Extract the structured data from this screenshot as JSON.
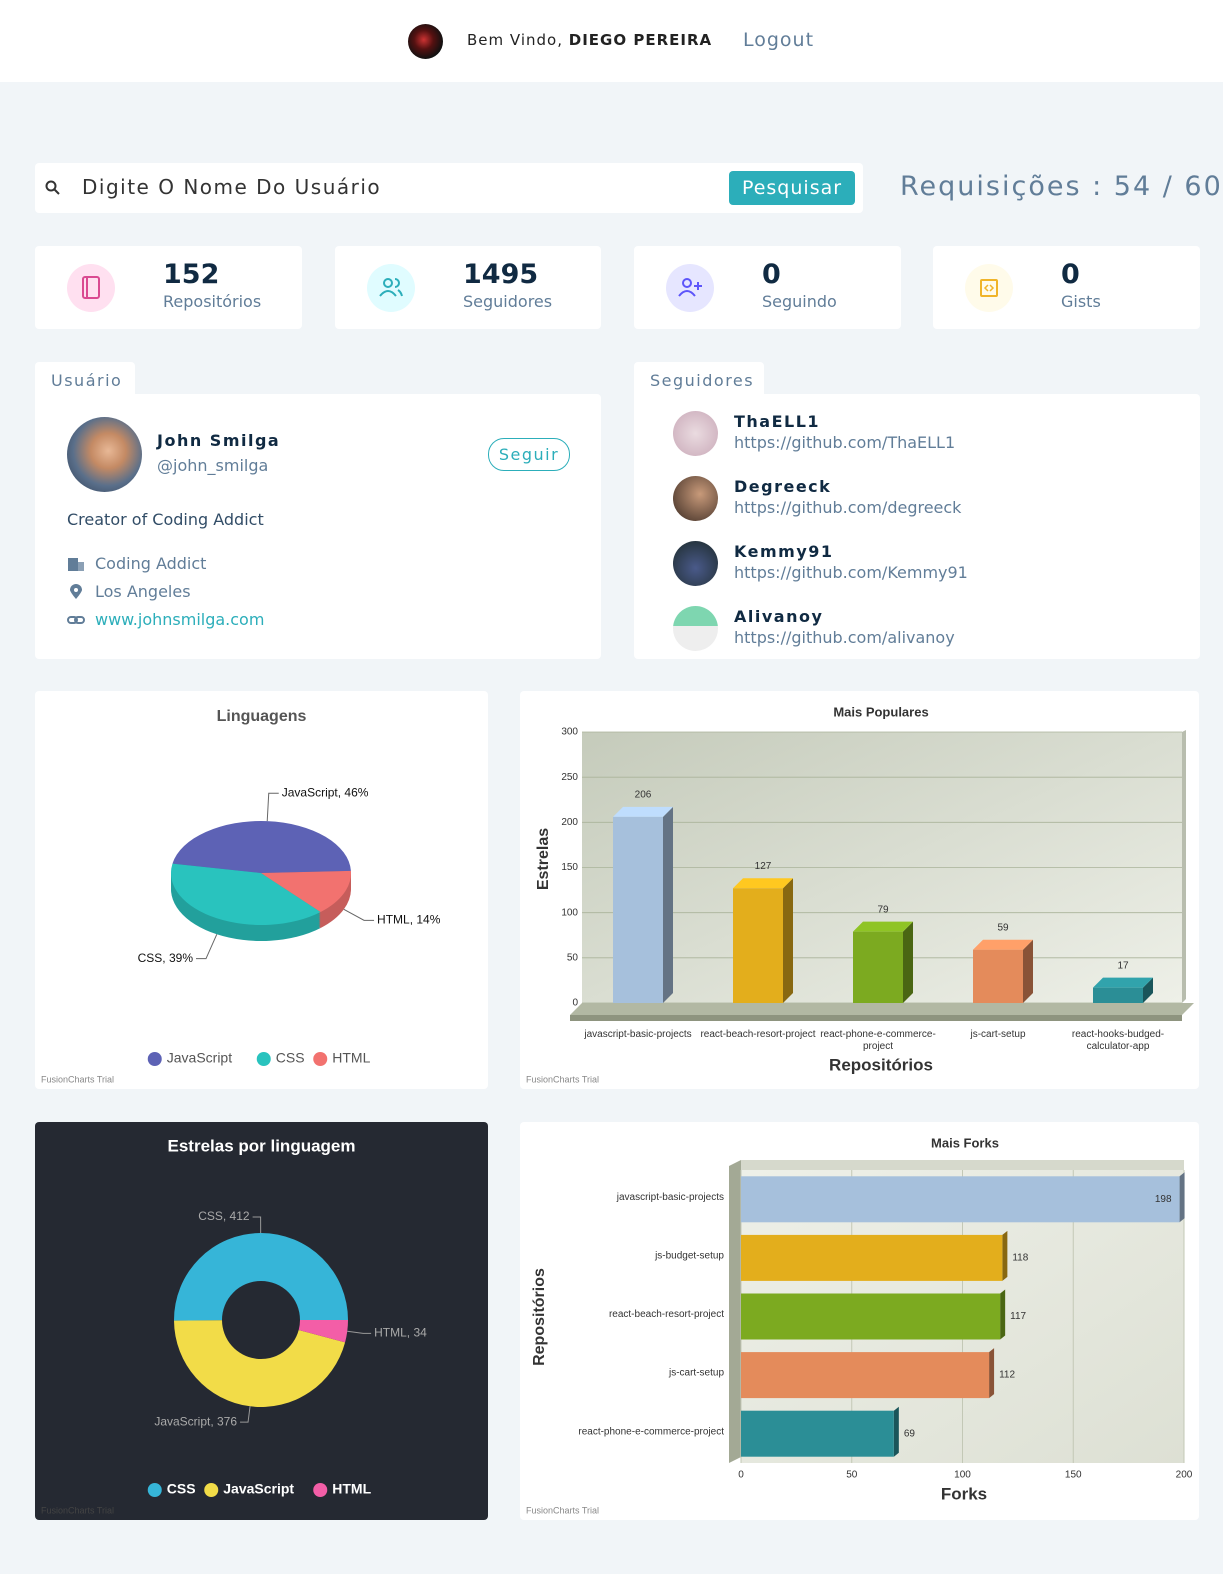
{
  "header": {
    "greeting": "Bem Vindo,",
    "user": "DIEGO PEREIRA",
    "logout": "Logout"
  },
  "search": {
    "placeholder": "Digite O Nome Do Usuário",
    "button": "Pesquisar",
    "requests": "Requisições : 54 / 60"
  },
  "stats": [
    {
      "value": 152,
      "label": "Repositórios"
    },
    {
      "value": 1495,
      "label": "Seguidores"
    },
    {
      "value": 0,
      "label": "Seguindo"
    },
    {
      "value": 0,
      "label": "Gists"
    }
  ],
  "user": {
    "tab": "Usuário",
    "name": "John Smilga",
    "login": "@john_smilga",
    "follow": "Seguir",
    "bio": "Creator of Coding Addict",
    "company": "Coding Addict",
    "location": "Los Angeles",
    "blog": "www.johnsmilga.com"
  },
  "followers": {
    "tab": "Seguidores",
    "items": [
      {
        "name": "ThaELL1",
        "url": "https://github.com/ThaELL1"
      },
      {
        "name": "Degreeck",
        "url": "https://github.com/degreeck"
      },
      {
        "name": "Kemmy91",
        "url": "https://github.com/Kemmy91"
      },
      {
        "name": "Alivanoy",
        "url": "https://github.com/alivanoy"
      }
    ]
  },
  "chart_data": [
    {
      "type": "pie",
      "title": "Linguagens",
      "categories": [
        "JavaScript",
        "CSS",
        "HTML"
      ],
      "values": [
        46,
        39,
        14
      ],
      "value_labels": [
        "JavaScript, 46%",
        "CSS, 39%",
        "HTML, 14%"
      ],
      "colors": [
        "#5d62b5",
        "#29c3be",
        "#f2726f"
      ],
      "legend": "bottom",
      "credit": "FusionCharts Trial"
    },
    {
      "type": "bar",
      "title": "Mais Populares",
      "x_label": "Repositórios",
      "y_label": "Estrelas",
      "categories": [
        "javascript-basic-projects",
        "react-beach-resort-project",
        "react-phone-e-commerce-project",
        "js-cart-setup",
        "react-hooks-budged-calculator-app"
      ],
      "values": [
        206,
        127,
        79,
        59,
        17
      ],
      "colors": [
        "#a6c0dc",
        "#e3ae1c",
        "#7caa20",
        "#e48b5b",
        "#2b8e96"
      ],
      "ylim": [
        0,
        300
      ],
      "yticks": [
        0,
        50,
        100,
        150,
        200,
        250,
        300
      ],
      "grid": true,
      "credit": "FusionCharts Trial"
    },
    {
      "type": "doughnut",
      "title": "Estrelas por linguagem",
      "categories": [
        "CSS",
        "JavaScript",
        "HTML"
      ],
      "values": [
        412,
        376,
        34
      ],
      "value_labels": [
        "CSS, 412",
        "JavaScript, 376",
        "HTML, 34"
      ],
      "colors": [
        "#36b5d8",
        "#f2dc48",
        "#f35ea7"
      ],
      "background": "#252932",
      "legend": "bottom",
      "credit": "FusionCharts Trial"
    },
    {
      "type": "barh",
      "title": "Mais Forks",
      "x_label": "Forks",
      "y_label": "Repositórios",
      "categories": [
        "javascript-basic-projects",
        "js-budget-setup",
        "react-beach-resort-project",
        "js-cart-setup",
        "react-phone-e-commerce-project"
      ],
      "values": [
        198,
        118,
        117,
        112,
        69
      ],
      "colors": [
        "#a6c0dc",
        "#e3ae1c",
        "#7caa20",
        "#e48b5b",
        "#2b8e96"
      ],
      "xlim": [
        0,
        200
      ],
      "xticks": [
        0,
        50,
        100,
        150,
        200
      ],
      "grid": true,
      "credit": "FusionCharts Trial"
    }
  ]
}
